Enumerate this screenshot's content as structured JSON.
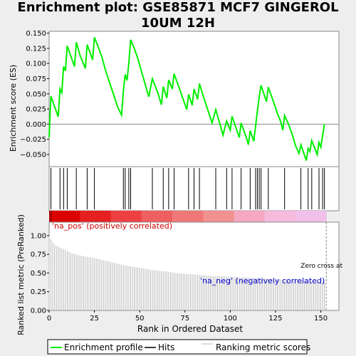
{
  "title_line1": "Enrichment plot: GSE85871 MCF7 GINGEROL",
  "title_line2": "10UM 12H",
  "chart_data": {
    "type": "line",
    "xlabel": "Rank in Ordered Dataset",
    "es_ylabel": "Enrichment score (ES)",
    "metric_ylabel": "Ranked list metric (PreRanked)",
    "xlim": [
      0,
      160
    ],
    "es_ylim": [
      -0.07,
      0.153
    ],
    "metric_ylim": [
      0,
      1.18
    ],
    "x_ticks": [
      0,
      25,
      50,
      75,
      100,
      125,
      150
    ],
    "es_ticks": [
      -0.05,
      -0.025,
      0.0,
      0.025,
      0.05,
      0.075,
      0.1,
      0.125,
      0.15
    ],
    "es_tick_labels": [
      "−0.050",
      "−0.025",
      "0.000",
      "0.025",
      "0.050",
      "0.075",
      "0.100",
      "0.125",
      "0.150"
    ],
    "metric_ticks": [
      0.0,
      0.25,
      0.5,
      0.75,
      1.0
    ],
    "metric_tick_labels": [
      "0.00",
      "0.25",
      "0.50",
      "0.75",
      "1.00"
    ],
    "hits": [
      1,
      6,
      8,
      10,
      15,
      21,
      25,
      41,
      42,
      44,
      45,
      57,
      63,
      66,
      69,
      77,
      80,
      83,
      92,
      98,
      101,
      106,
      111,
      114,
      115,
      116,
      117,
      121,
      130,
      139,
      143,
      145,
      149,
      151,
      152
    ],
    "enrichment_profile": [
      [
        0,
        -0.022
      ],
      [
        1,
        0.046
      ],
      [
        5,
        0.012
      ],
      [
        6,
        0.058
      ],
      [
        7,
        0.052
      ],
      [
        8,
        0.095
      ],
      [
        9,
        0.088
      ],
      [
        10,
        0.129
      ],
      [
        14,
        0.095
      ],
      [
        15,
        0.135
      ],
      [
        16,
        0.125
      ],
      [
        17,
        0.114
      ],
      [
        20,
        0.092
      ],
      [
        21,
        0.131
      ],
      [
        24,
        0.106
      ],
      [
        25,
        0.143
      ],
      [
        27,
        0.128
      ],
      [
        29,
        0.112
      ],
      [
        31,
        0.09
      ],
      [
        33,
        0.072
      ],
      [
        36,
        0.045
      ],
      [
        38,
        0.027
      ],
      [
        40,
        0.015
      ],
      [
        41,
        0.055
      ],
      [
        42,
        0.082
      ],
      [
        43,
        0.072
      ],
      [
        44,
        0.1
      ],
      [
        45,
        0.139
      ],
      [
        47,
        0.125
      ],
      [
        49,
        0.108
      ],
      [
        51,
        0.087
      ],
      [
        55,
        0.045
      ],
      [
        57,
        0.075
      ],
      [
        60,
        0.052
      ],
      [
        62,
        0.032
      ],
      [
        63,
        0.062
      ],
      [
        65,
        0.043
      ],
      [
        66,
        0.073
      ],
      [
        68,
        0.058
      ],
      [
        69,
        0.083
      ],
      [
        72,
        0.058
      ],
      [
        76,
        0.024
      ],
      [
        77,
        0.049
      ],
      [
        79,
        0.031
      ],
      [
        80,
        0.058
      ],
      [
        82,
        0.041
      ],
      [
        83,
        0.067
      ],
      [
        85,
        0.047
      ],
      [
        90,
        0.002
      ],
      [
        92,
        0.024
      ],
      [
        96,
        -0.018
      ],
      [
        98,
        0.005
      ],
      [
        100,
        -0.01
      ],
      [
        101,
        0.013
      ],
      [
        105,
        -0.022
      ],
      [
        106,
        0.002
      ],
      [
        109,
        -0.023
      ],
      [
        110,
        -0.034
      ],
      [
        111,
        -0.011
      ],
      [
        113,
        -0.028
      ],
      [
        114,
        -0.003
      ],
      [
        115,
        0.022
      ],
      [
        116,
        0.045
      ],
      [
        117,
        0.064
      ],
      [
        120,
        0.037
      ],
      [
        121,
        0.061
      ],
      [
        124,
        0.036
      ],
      [
        126,
        0.018
      ],
      [
        128,
        0.003
      ],
      [
        129,
        -0.01
      ],
      [
        130,
        0.014
      ],
      [
        132,
        0.001
      ],
      [
        134,
        -0.015
      ],
      [
        136,
        -0.035
      ],
      [
        138,
        -0.048
      ],
      [
        139,
        -0.034
      ],
      [
        142,
        -0.06
      ],
      [
        143,
        -0.04
      ],
      [
        144,
        -0.045
      ],
      [
        145,
        -0.027
      ],
      [
        148,
        -0.05
      ],
      [
        149,
        -0.03
      ],
      [
        150,
        -0.038
      ],
      [
        152,
        0.0
      ]
    ],
    "ranking_metric": [
      [
        0,
        1.0
      ],
      [
        1,
        0.95
      ],
      [
        2,
        0.91
      ],
      [
        3,
        0.88
      ],
      [
        5,
        0.85
      ],
      [
        8,
        0.82
      ],
      [
        12,
        0.77
      ],
      [
        16,
        0.74
      ],
      [
        20,
        0.72
      ],
      [
        25,
        0.7
      ],
      [
        30,
        0.67
      ],
      [
        35,
        0.64
      ],
      [
        40,
        0.61
      ],
      [
        45,
        0.59
      ],
      [
        50,
        0.57
      ],
      [
        55,
        0.55
      ],
      [
        60,
        0.53
      ],
      [
        65,
        0.52
      ],
      [
        70,
        0.5
      ],
      [
        75,
        0.49
      ],
      [
        80,
        0.48
      ],
      [
        85,
        0.47
      ],
      [
        90,
        0.46
      ],
      [
        95,
        0.46
      ],
      [
        100,
        0.45
      ],
      [
        110,
        0.44
      ],
      [
        120,
        0.42
      ],
      [
        130,
        0.41
      ],
      [
        140,
        0.4
      ],
      [
        150,
        0.38
      ],
      [
        152,
        0.38
      ]
    ],
    "zero_cross_x": 153,
    "zero_cross_label": "Zero cross at",
    "pos_label": "'na_pos' (positively correlated)",
    "neg_label": "'na_neg' (negatively correlated)",
    "legend": [
      "Enrichment profile",
      "Hits",
      "Ranking metric scores"
    ],
    "colors": {
      "profile": "#00ee00",
      "hits": "#000000",
      "metric": "#bbbbbb",
      "pos_text": "#cc0000",
      "neg_text": "#0000cc",
      "heat": [
        "#dd0000",
        "#e62020",
        "#ee4040",
        "#f06060",
        "#f07878",
        "#f39090",
        "#f5a8c0",
        "#f5bbdd",
        "#f0c0e8"
      ]
    }
  }
}
